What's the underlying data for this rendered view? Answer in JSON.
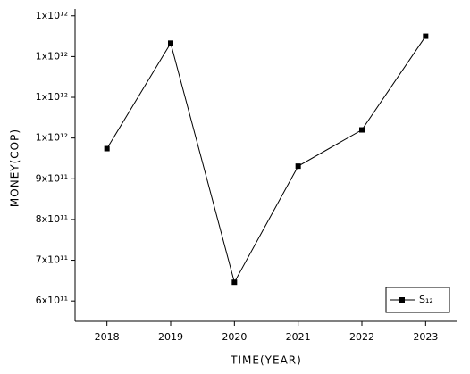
{
  "chart_data": {
    "type": "line",
    "x_label": "TIME(YEAR)",
    "y_label": "MONEY(COP)",
    "x": [
      2018,
      2019,
      2020,
      2021,
      2022,
      2023
    ],
    "series": [
      {
        "name": "S₁₂",
        "color": "#000000",
        "values": [
          974000000000,
          1233000000000,
          646000000000,
          931000000000,
          1020000000000,
          1250000000000
        ]
      }
    ],
    "xlim": [
      2017.5,
      2023.5
    ],
    "xticks": [
      2018,
      2019,
      2020,
      2021,
      2022,
      2023
    ],
    "ylim": [
      550000000000,
      1317000000000
    ],
    "yticks": [
      {
        "value": 600000000000,
        "label": "6x10¹¹"
      },
      {
        "value": 700000000000,
        "label": "7x10¹¹"
      },
      {
        "value": 800000000000,
        "label": "8x10¹¹"
      },
      {
        "value": 900000000000,
        "label": "9x10¹¹"
      },
      {
        "value": 1000000000000,
        "label": "1x10¹²"
      },
      {
        "value": 1100000000000,
        "label": "1x10¹²"
      },
      {
        "value": 1200000000000,
        "label": "1x10¹²"
      },
      {
        "value": 1300000000000,
        "label": "1x10¹²"
      }
    ],
    "grid": false,
    "legend": "lower right"
  }
}
